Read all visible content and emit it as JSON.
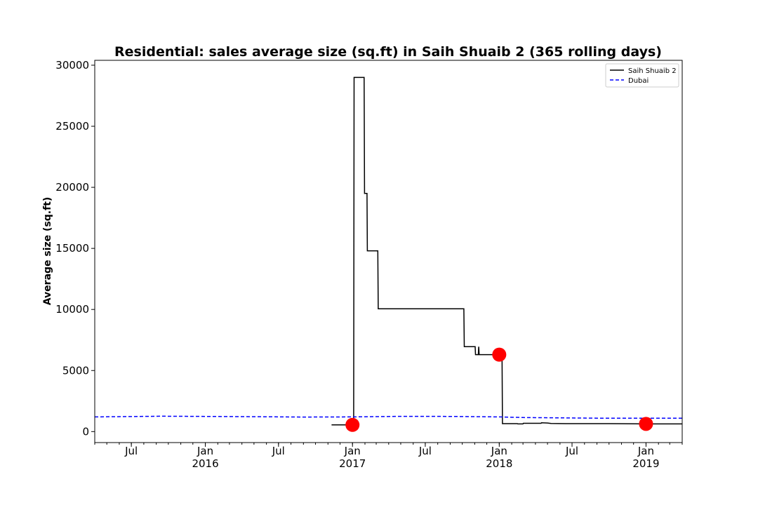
{
  "chart_data": {
    "type": "line",
    "title": "Residential: sales average size (sq.ft) in Saih Shuaib 2 (365 rolling days)",
    "xlabel": "",
    "ylabel": "Average size (sq.ft)",
    "xlim": [
      "2015-04-01",
      "2019-04-01"
    ],
    "ylim": [
      -900,
      30400
    ],
    "yticks": [
      0,
      5000,
      10000,
      15000,
      20000,
      25000,
      30000
    ],
    "xticks": [
      {
        "date": "2015-07-01",
        "label": "Jul",
        "year": ""
      },
      {
        "date": "2016-01-01",
        "label": "Jan",
        "year": "2016"
      },
      {
        "date": "2016-07-01",
        "label": "Jul",
        "year": ""
      },
      {
        "date": "2017-01-01",
        "label": "Jan",
        "year": "2017"
      },
      {
        "date": "2017-07-01",
        "label": "Jul",
        "year": ""
      },
      {
        "date": "2018-01-01",
        "label": "Jan",
        "year": "2018"
      },
      {
        "date": "2018-07-01",
        "label": "Jul",
        "year": ""
      },
      {
        "date": "2019-01-01",
        "label": "Jan",
        "year": "2019"
      }
    ],
    "legend_position": "top-right",
    "grid": false,
    "series": [
      {
        "name": "Saih Shuaib 2",
        "color": "#000000",
        "style": "solid",
        "points": [
          [
            "2016-11-10",
            550
          ],
          [
            "2017-01-01",
            550
          ],
          [
            "2017-01-04",
            550
          ],
          [
            "2017-01-05",
            29000
          ],
          [
            "2017-01-30",
            29000
          ],
          [
            "2017-01-31",
            19500
          ],
          [
            "2017-02-06",
            19500
          ],
          [
            "2017-02-07",
            14800
          ],
          [
            "2017-03-05",
            14800
          ],
          [
            "2017-03-06",
            10050
          ],
          [
            "2017-10-05",
            10050
          ],
          [
            "2017-10-06",
            6950
          ],
          [
            "2017-11-02",
            6950
          ],
          [
            "2017-11-03",
            6300
          ],
          [
            "2017-11-10",
            6300
          ],
          [
            "2017-11-11",
            6950
          ],
          [
            "2017-11-12",
            6300
          ],
          [
            "2018-01-01",
            6300
          ],
          [
            "2018-01-08",
            6300
          ],
          [
            "2018-01-09",
            650
          ],
          [
            "2018-02-15",
            650
          ],
          [
            "2018-02-16",
            630
          ],
          [
            "2018-03-01",
            630
          ],
          [
            "2018-03-02",
            680
          ],
          [
            "2018-04-15",
            680
          ],
          [
            "2018-04-16",
            720
          ],
          [
            "2018-05-01",
            700
          ],
          [
            "2018-05-10",
            670
          ],
          [
            "2018-06-15",
            650
          ],
          [
            "2018-10-01",
            650
          ],
          [
            "2019-01-01",
            630
          ],
          [
            "2019-04-01",
            630
          ]
        ]
      },
      {
        "name": "Dubai",
        "color": "#0000ff",
        "style": "dashed",
        "points": [
          [
            "2015-04-01",
            1200
          ],
          [
            "2015-09-15",
            1260
          ],
          [
            "2016-01-01",
            1240
          ],
          [
            "2016-05-01",
            1220
          ],
          [
            "2016-09-01",
            1190
          ],
          [
            "2017-01-01",
            1200
          ],
          [
            "2017-05-01",
            1250
          ],
          [
            "2017-09-01",
            1240
          ],
          [
            "2018-01-01",
            1200
          ],
          [
            "2018-03-01",
            1150
          ],
          [
            "2018-09-01",
            1100
          ],
          [
            "2019-01-01",
            1100
          ],
          [
            "2019-04-01",
            1100
          ]
        ]
      }
    ],
    "markers": {
      "color": "#ff0000",
      "points": [
        [
          "2017-01-01",
          550
        ],
        [
          "2018-01-01",
          6300
        ],
        [
          "2019-01-01",
          630
        ]
      ]
    }
  }
}
